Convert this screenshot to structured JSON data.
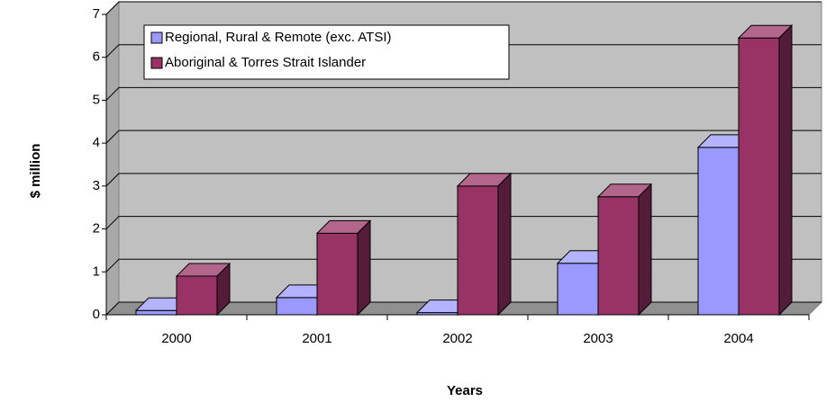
{
  "chart_data": {
    "type": "bar3d",
    "xlabel": "Years",
    "ylabel": "$ million",
    "categories": [
      "2000",
      "2001",
      "2002",
      "2003",
      "2004"
    ],
    "series": [
      {
        "name": "Regional, Rural & Remote (exc. ATSI)",
        "color": "#9999ff",
        "values": [
          0.1,
          0.4,
          0.05,
          1.2,
          3.9
        ]
      },
      {
        "name": "Aboriginal & Torres Strait Islander",
        "color": "#993366",
        "values": [
          0.9,
          1.9,
          3.0,
          2.75,
          6.45
        ]
      }
    ],
    "ylim": [
      0,
      7
    ],
    "yticks": [
      0,
      1,
      2,
      3,
      4,
      5,
      6,
      7
    ],
    "grid": true
  }
}
